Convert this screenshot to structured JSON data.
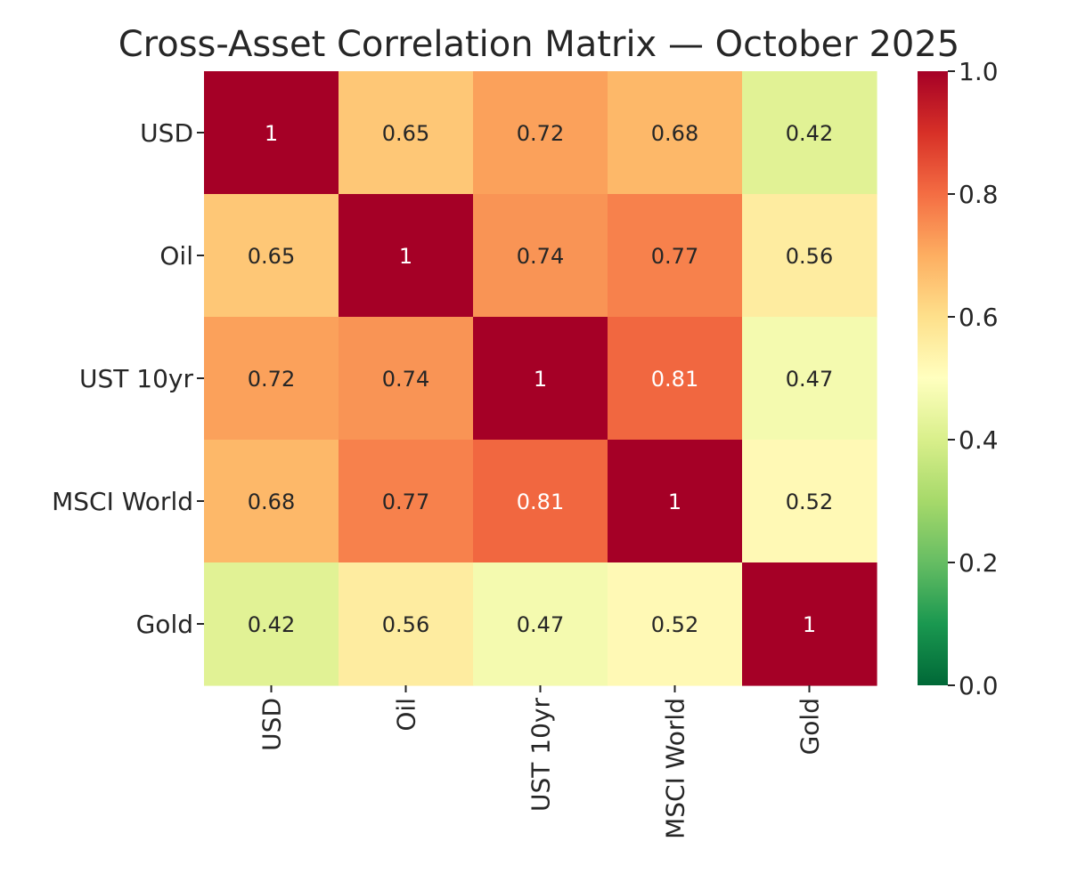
{
  "chart_data": {
    "type": "heatmap",
    "title": "Cross-Asset Correlation Matrix — October 2025",
    "row_labels": [
      "USD",
      "Oil",
      "UST 10yr",
      "MSCI World",
      "Gold"
    ],
    "col_labels": [
      "USD",
      "Oil",
      "UST 10yr",
      "MSCI World",
      "Gold"
    ],
    "values": [
      [
        1,
        0.65,
        0.72,
        0.68,
        0.42
      ],
      [
        0.65,
        1,
        0.74,
        0.77,
        0.56
      ],
      [
        0.72,
        0.74,
        1,
        0.81,
        0.47
      ],
      [
        0.68,
        0.77,
        0.81,
        1,
        0.52
      ],
      [
        0.42,
        0.56,
        0.47,
        0.52,
        1
      ]
    ],
    "colormap": "RdYlGn_r",
    "vmin": 0,
    "vmax": 1,
    "colorbar_ticks": [
      "0.0",
      "0.2",
      "0.4",
      "0.6",
      "0.8",
      "1.0"
    ],
    "annotations": true
  }
}
